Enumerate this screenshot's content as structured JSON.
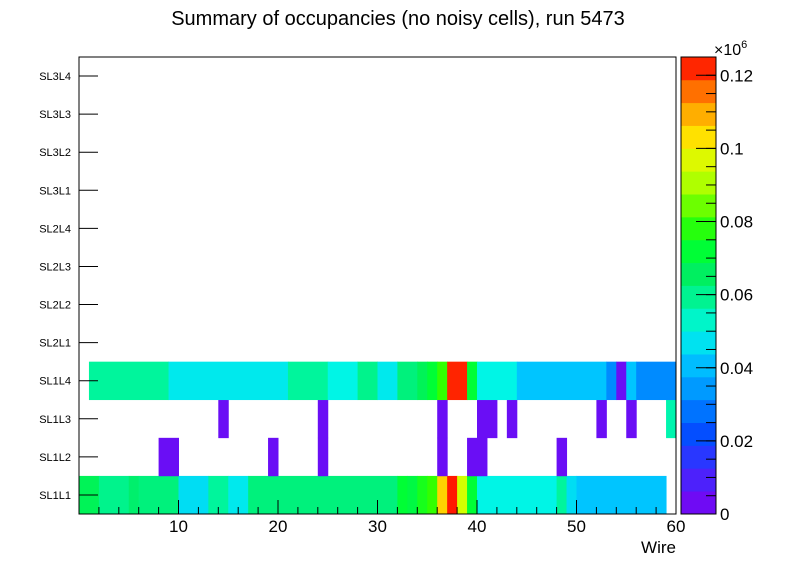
{
  "chart_data": {
    "type": "heatmap",
    "title": "Summary of occupancies (no noisy cells), run 5473",
    "xlabel": "Wire",
    "ylabel": "",
    "xlim": [
      0,
      60
    ],
    "x_ticks": [
      "10",
      "20",
      "30",
      "40",
      "50",
      "60"
    ],
    "y_categories": [
      "SL1L1",
      "SL1L2",
      "SL1L3",
      "SL1L4",
      "SL2L1",
      "SL2L2",
      "SL2L3",
      "SL2L4",
      "SL3L1",
      "SL3L2",
      "SL3L3",
      "SL3L4"
    ],
    "colorbar": {
      "min": 0,
      "max": 125000,
      "exponent_label": "×10",
      "exponent_power": "6",
      "tick_labels": [
        "0",
        "0.02",
        "0.04",
        "0.06",
        "0.08",
        "0.1",
        "0.12"
      ],
      "tick_values": [
        0,
        0.02,
        0.04,
        0.06,
        0.08,
        0.1,
        0.12
      ]
    },
    "rows": {
      "SL1L1": [
        [
          1,
          2,
          67000
        ],
        [
          3,
          5,
          60000
        ],
        [
          6,
          6,
          64000
        ],
        [
          7,
          10,
          62000
        ],
        [
          11,
          13,
          46000
        ],
        [
          14,
          15,
          58000
        ],
        [
          16,
          17,
          48000
        ],
        [
          18,
          32,
          62000
        ],
        [
          33,
          33,
          72000
        ],
        [
          34,
          34,
          70000
        ],
        [
          35,
          35,
          76000
        ],
        [
          36,
          36,
          80000
        ],
        [
          37,
          37,
          105000
        ],
        [
          38,
          38,
          123000
        ],
        [
          39,
          39,
          95000
        ],
        [
          40,
          40,
          72000
        ],
        [
          41,
          48,
          50000
        ],
        [
          49,
          49,
          58000
        ],
        [
          50,
          50,
          46000
        ],
        [
          51,
          59,
          42000
        ]
      ],
      "SL1L2": [
        [
          9,
          10,
          4000
        ],
        [
          20,
          20,
          4000
        ],
        [
          25,
          25,
          4000
        ],
        [
          37,
          37,
          4000
        ],
        [
          40,
          41,
          4000
        ],
        [
          49,
          49,
          4000
        ]
      ],
      "SL1L3": [
        [
          15,
          15,
          4000
        ],
        [
          25,
          25,
          4000
        ],
        [
          37,
          37,
          4000
        ],
        [
          41,
          42,
          4000
        ],
        [
          44,
          44,
          4000
        ],
        [
          53,
          53,
          4000
        ],
        [
          56,
          56,
          4000
        ],
        [
          60,
          60,
          56000
        ]
      ],
      "SL1L4": [
        [
          2,
          9,
          58000
        ],
        [
          10,
          21,
          48000
        ],
        [
          22,
          25,
          58000
        ],
        [
          26,
          28,
          50000
        ],
        [
          29,
          30,
          60000
        ],
        [
          31,
          32,
          48000
        ],
        [
          33,
          34,
          62000
        ],
        [
          35,
          35,
          67000
        ],
        [
          36,
          36,
          72000
        ],
        [
          37,
          37,
          80000
        ],
        [
          38,
          39,
          122000
        ],
        [
          40,
          40,
          72000
        ],
        [
          41,
          44,
          50000
        ],
        [
          45,
          53,
          42000
        ],
        [
          54,
          54,
          32000
        ],
        [
          55,
          55,
          4000
        ],
        [
          56,
          56,
          42000
        ],
        [
          57,
          60,
          32000
        ]
      ],
      "SL2L1": [],
      "SL2L2": [],
      "SL2L3": [],
      "SL2L4": [],
      "SL3L1": [],
      "SL3L2": [],
      "SL3L3": [],
      "SL3L4": []
    }
  }
}
